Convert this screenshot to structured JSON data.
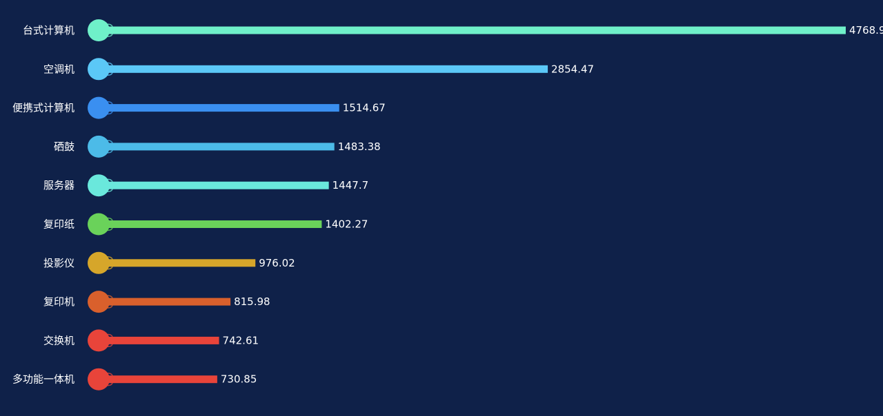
{
  "chart_data": {
    "type": "bar",
    "orientation": "horizontal",
    "categories": [
      "台式计算机",
      "空调机",
      "便携式计算机",
      "硒鼓",
      "服务器",
      "复印纸",
      "投影仪",
      "复印机",
      "交换机",
      "多功能一体机"
    ],
    "values": [
      4768.9,
      2854.47,
      1514.67,
      1483.38,
      1447.7,
      1402.27,
      976.02,
      815.98,
      742.61,
      730.85
    ],
    "value_labels": [
      "4768.9",
      "2854.47",
      "1514.67",
      "1483.38",
      "1447.7",
      "1402.27",
      "976.02",
      "815.98",
      "742.61",
      "730.85"
    ],
    "colors": [
      "#6ff0c9",
      "#5bc8f7",
      "#3a8ff0",
      "#4cbbe8",
      "#6ae8dc",
      "#6ad25a",
      "#d6a62a",
      "#d9602c",
      "#e8443a",
      "#e8443a"
    ],
    "title": "",
    "xlabel": "",
    "ylabel": "",
    "grid": false,
    "legend": false
  },
  "theme": {
    "background": "#0f2149",
    "text_color": "#ffffff"
  }
}
